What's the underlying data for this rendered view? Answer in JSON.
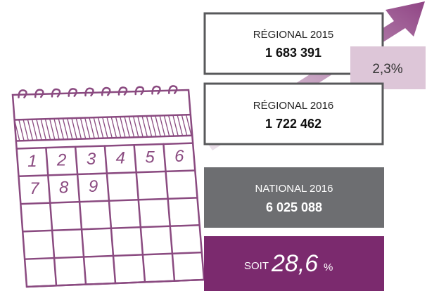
{
  "stats": {
    "regional_2015": {
      "label": "RÉGIONAL 2015",
      "value": "1 683 391"
    },
    "regional_2016": {
      "label": "RÉGIONAL 2016",
      "value": "1 722 462"
    },
    "growth": "2,3%",
    "national_2016": {
      "label": "NATIONAL 2016",
      "value": "6 025 088"
    },
    "share": {
      "prefix": "SOIT",
      "value": "28,6",
      "suffix": "%"
    }
  },
  "calendar": {
    "days": [
      "1",
      "2",
      "3",
      "4",
      "5",
      "6",
      "7",
      "8",
      "9"
    ]
  }
}
